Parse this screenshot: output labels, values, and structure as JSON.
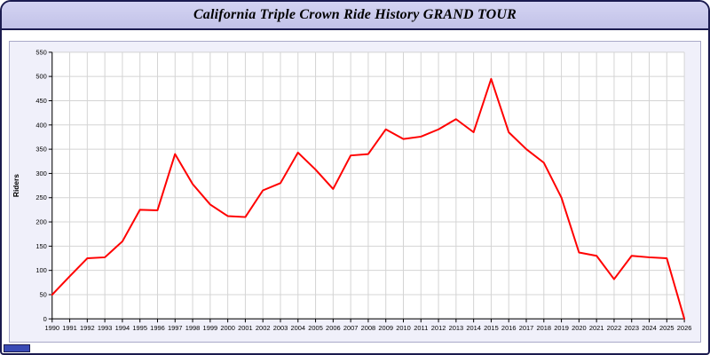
{
  "window": {
    "title": "California Triple Crown Ride History GRAND TOUR"
  },
  "chart_data": {
    "type": "line",
    "title": "California Triple Crown Ride History GRAND TOUR",
    "xlabel": "",
    "ylabel": "Riders",
    "categories": [
      1990,
      1991,
      1992,
      1993,
      1994,
      1995,
      1996,
      1997,
      1998,
      1999,
      2000,
      2001,
      2002,
      2003,
      2004,
      2005,
      2006,
      2007,
      2008,
      2009,
      2010,
      2011,
      2012,
      2013,
      2014,
      2015,
      2016,
      2017,
      2018,
      2019,
      2020,
      2021,
      2022,
      2023,
      2024,
      2025,
      2026
    ],
    "values": [
      50,
      88,
      125,
      127,
      160,
      225,
      224,
      340,
      278,
      236,
      212,
      210,
      265,
      280,
      343,
      308,
      268,
      337,
      340,
      391,
      371,
      376,
      391,
      412,
      385,
      495,
      385,
      350,
      322,
      250,
      137,
      130,
      82,
      130,
      127,
      125,
      0
    ],
    "ylim": [
      0,
      550
    ],
    "ytick_step": 50,
    "grid": true,
    "legend": "none",
    "line_color": "#ff0000",
    "plot_background": "#ffffff",
    "panel_background": "#f0f0fa",
    "grid_color": "#d4d4d4",
    "axis_color": "#000000"
  },
  "colors": {
    "titlebar_bg": "#c8c8ee",
    "window_border": "#1b1b4f",
    "status_box": "#3a4bb5"
  }
}
